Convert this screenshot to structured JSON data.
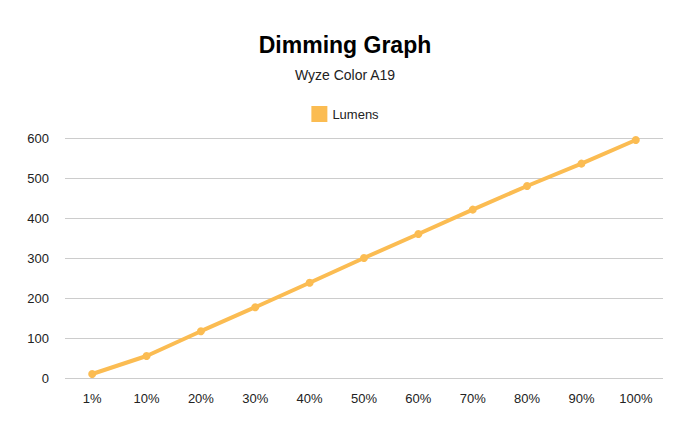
{
  "chart_data": {
    "type": "line",
    "title": "Dimming Graph",
    "subtitle": "Wyze Color A19",
    "categories": [
      "1%",
      "10%",
      "20%",
      "30%",
      "40%",
      "50%",
      "60%",
      "70%",
      "80%",
      "90%",
      "100%"
    ],
    "series": [
      {
        "name": "Lumens",
        "color": "#fbbc52",
        "marker": "circle",
        "line_style": "solid",
        "values": [
          10,
          55,
          117,
          177,
          238,
          300,
          360,
          421,
          480,
          536,
          595
        ]
      }
    ],
    "ylim": [
      0,
      600
    ],
    "yticks": [
      0,
      100,
      200,
      300,
      400,
      500,
      600
    ],
    "grid": true,
    "legend": "top"
  }
}
